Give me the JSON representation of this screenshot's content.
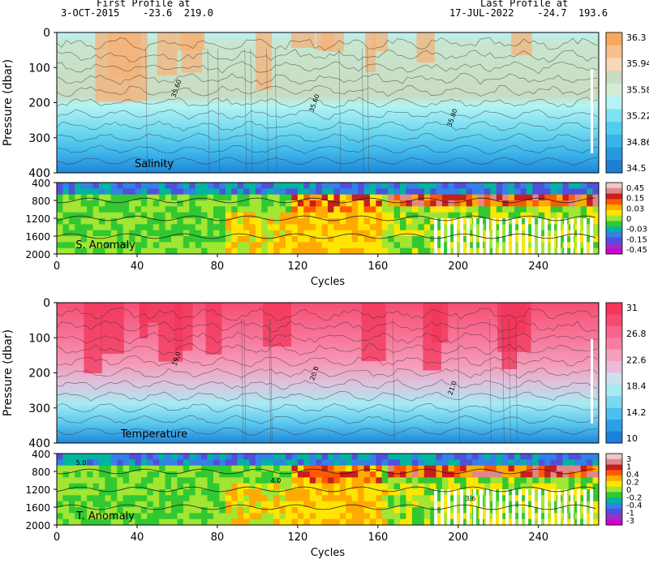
{
  "header": {
    "first_label": "First Profile at",
    "first_value": "3-OCT-2015    -23.6  219.0",
    "last_label": "Last Profile at",
    "last_value": "17-JUL-2022    -24.7  193.6"
  },
  "chart_data": [
    {
      "type": "heatmap",
      "title": "Salinity",
      "ylabel": "Pressure (dbar)",
      "xlim": [
        0,
        270
      ],
      "ylim": [
        0,
        400
      ],
      "y_inverted": true,
      "x_ticks": [],
      "y_ticks": [
        0,
        100,
        200,
        300,
        400
      ],
      "colorbar_ticks": [
        "36.3",
        "35.94",
        "35.58",
        "35.22",
        "34.86",
        "34.5"
      ],
      "colorbar_colors": [
        "#f7a85a",
        "#f9c08c",
        "#fad7b8",
        "#c9dcc0",
        "#d2ecd5",
        "#b4f4f4",
        "#7ee3f1",
        "#52cdef",
        "#38b3eb",
        "#2a97e1",
        "#1d7fd2"
      ],
      "contour_labels": [
        "35.60",
        "35.60",
        "35.80"
      ]
    },
    {
      "type": "heatmap",
      "title": "S. Anomaly",
      "xlabel": "Cycles",
      "xlim": [
        0,
        270
      ],
      "ylim": [
        400,
        2000
      ],
      "y_inverted": true,
      "x_ticks": [
        0,
        40,
        80,
        120,
        160,
        200,
        240
      ],
      "y_ticks": [
        400,
        800,
        1200,
        1600,
        2000
      ],
      "colorbar_ticks": [
        "0.45",
        "0.15",
        "0.03",
        "0",
        "-0.03",
        "-0.15",
        "-0.45"
      ],
      "colorbar_colors": [
        "#f0c8c8",
        "#e08888",
        "#c81e1e",
        "#ff5a00",
        "#ffaa00",
        "#ffe600",
        "#a0e632",
        "#32c832",
        "#00b4a0",
        "#3282e6",
        "#5050dc",
        "#9632c8",
        "#d200d2"
      ]
    },
    {
      "type": "heatmap",
      "title": "Temperature",
      "ylabel": "Pressure (dbar)",
      "xlim": [
        0,
        270
      ],
      "ylim": [
        0,
        400
      ],
      "y_inverted": true,
      "x_ticks": [],
      "y_ticks": [
        0,
        100,
        200,
        300,
        400
      ],
      "colorbar_ticks": [
        "31",
        "26.8",
        "22.6",
        "18.4",
        "14.2",
        "10"
      ],
      "colorbar_colors": [
        "#f5365a",
        "#f64a70",
        "#f8648a",
        "#f87ea0",
        "#f4a0bc",
        "#e8bcd8",
        "#cde0ee",
        "#a8eaf2",
        "#7ad8f0",
        "#4cbfee",
        "#2aa0e6",
        "#1a80da"
      ],
      "contour_labels": [
        "19.0",
        "20.0",
        "21.0"
      ]
    },
    {
      "type": "heatmap",
      "title": "T. Anomaly",
      "xlabel": "Cycles",
      "xlim": [
        0,
        270
      ],
      "ylim": [
        400,
        2000
      ],
      "y_inverted": true,
      "x_ticks": [
        0,
        40,
        80,
        120,
        160,
        200,
        240
      ],
      "y_ticks": [
        400,
        800,
        1200,
        1600,
        2000
      ],
      "colorbar_ticks": [
        "3",
        "1",
        "0.4",
        "0.2",
        "0",
        "-0.2",
        "-0.4",
        "-1",
        "-3"
      ],
      "colorbar_colors": [
        "#f0c8c8",
        "#e08888",
        "#c81e1e",
        "#ff5a00",
        "#ffaa00",
        "#ffe600",
        "#a0e632",
        "#32c832",
        "#00b4a0",
        "#3282e6",
        "#5050dc",
        "#9632c8",
        "#d200d2"
      ],
      "contour_labels": [
        "5.0",
        "4.0",
        "3.6"
      ]
    }
  ]
}
